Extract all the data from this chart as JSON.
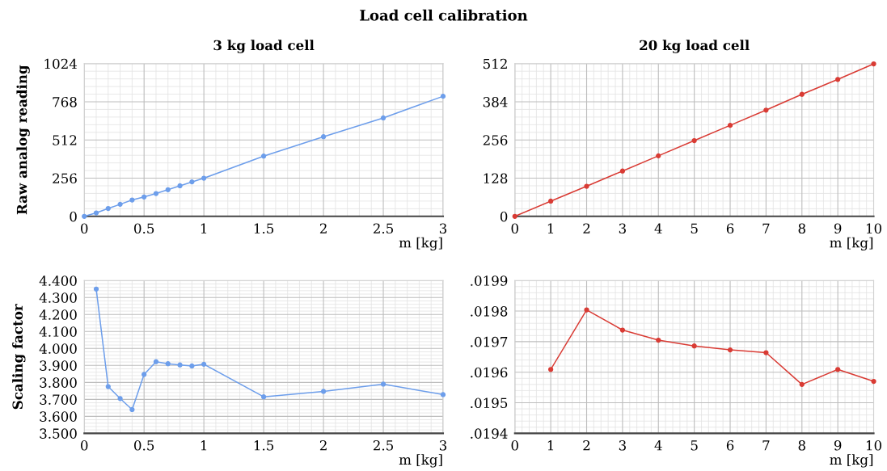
{
  "chart_data": [
    {
      "type": "line",
      "title": "3 kg load cell",
      "ylabel": "Raw analog reading",
      "xlabel": "m [kg]",
      "annotations": [
        "Load cell calibration"
      ],
      "x": [
        0,
        0.1,
        0.2,
        0.3,
        0.4,
        0.5,
        0.6,
        0.7,
        0.8,
        0.9,
        1,
        1.5,
        2,
        2.5,
        3
      ],
      "series": [
        {
          "color": "#6d9eeb",
          "values": [
            0,
            23,
            53,
            81,
            110,
            130,
            153,
            179,
            205,
            231,
            256,
            404,
            534,
            660,
            805
          ]
        }
      ],
      "xlim": [
        0,
        3
      ],
      "xticks": [
        0,
        0.5,
        1,
        1.5,
        2,
        2.5,
        3
      ],
      "ylim": [
        0,
        1024
      ],
      "yticks": [
        0,
        256,
        512,
        768,
        1024
      ],
      "grid": true,
      "marker": "circle",
      "line_style": "solid"
    },
    {
      "type": "line",
      "title": "20 kg load cell",
      "xlabel": "m [kg]",
      "x": [
        0,
        1,
        2,
        3,
        4,
        5,
        6,
        7,
        8,
        9,
        10
      ],
      "series": [
        {
          "color": "#d93b34",
          "values": [
            0,
            51,
            101,
            152,
            203,
            254,
            305,
            356,
            409,
            459,
            511
          ]
        }
      ],
      "xlim": [
        0,
        10
      ],
      "xticks": [
        0,
        1,
        2,
        3,
        4,
        5,
        6,
        7,
        8,
        9,
        10
      ],
      "ylim": [
        0,
        512
      ],
      "yticks": [
        0,
        128,
        256,
        384,
        512
      ],
      "grid": true,
      "marker": "circle",
      "line_style": "solid"
    },
    {
      "type": "line",
      "ylabel": "Scaling factor",
      "xlabel": "m [kg]",
      "x": [
        0.1,
        0.2,
        0.3,
        0.4,
        0.5,
        0.6,
        0.7,
        0.8,
        0.9,
        1,
        1.5,
        2,
        2.5,
        3
      ],
      "series": [
        {
          "color": "#6d9eeb",
          "values": [
            4.35,
            3.775,
            3.705,
            3.64,
            3.847,
            3.922,
            3.91,
            3.903,
            3.897,
            3.907,
            3.715,
            3.747,
            3.79,
            3.728
          ]
        }
      ],
      "xlim": [
        0,
        3
      ],
      "xticks": [
        0,
        0.5,
        1,
        1.5,
        2,
        2.5,
        3
      ],
      "ylim": [
        3.5,
        4.4
      ],
      "yticks": [
        {
          "value": 3.5,
          "label": "3.500"
        },
        {
          "value": 3.6,
          "label": "3.600"
        },
        {
          "value": 3.7,
          "label": "3.700"
        },
        {
          "value": 3.8,
          "label": "3.800"
        },
        {
          "value": 3.9,
          "label": "3.900"
        },
        {
          "value": 4.0,
          "label": "4.000"
        },
        {
          "value": 4.1,
          "label": "4.100"
        },
        {
          "value": 4.2,
          "label": "4.200"
        },
        {
          "value": 4.3,
          "label": "4.300"
        },
        {
          "value": 4.4,
          "label": "4.400"
        }
      ],
      "grid": true,
      "marker": "circle",
      "line_style": "solid"
    },
    {
      "type": "line",
      "xlabel": "m [kg]",
      "x": [
        1,
        2,
        3,
        4,
        5,
        6,
        7,
        8,
        9,
        10
      ],
      "series": [
        {
          "color": "#d93b34",
          "values": [
            0.019609,
            0.019804,
            0.019738,
            0.019705,
            0.019686,
            0.019673,
            0.019664,
            0.01956,
            0.019609,
            0.01957
          ]
        }
      ],
      "xlim": [
        0,
        10
      ],
      "xticks": [
        0,
        1,
        2,
        3,
        4,
        5,
        6,
        7,
        8,
        9,
        10
      ],
      "ylim": [
        0.0194,
        0.0199
      ],
      "yticks": [
        {
          "value": 0.0194,
          "label": ".0194"
        },
        {
          "value": 0.0195,
          "label": ".0195"
        },
        {
          "value": 0.0196,
          "label": ".0196"
        },
        {
          "value": 0.0197,
          "label": ".0197"
        },
        {
          "value": 0.0198,
          "label": ".0198"
        },
        {
          "value": 0.0199,
          "label": ".0199"
        }
      ],
      "grid": true,
      "marker": "circle",
      "line_style": "solid"
    }
  ]
}
